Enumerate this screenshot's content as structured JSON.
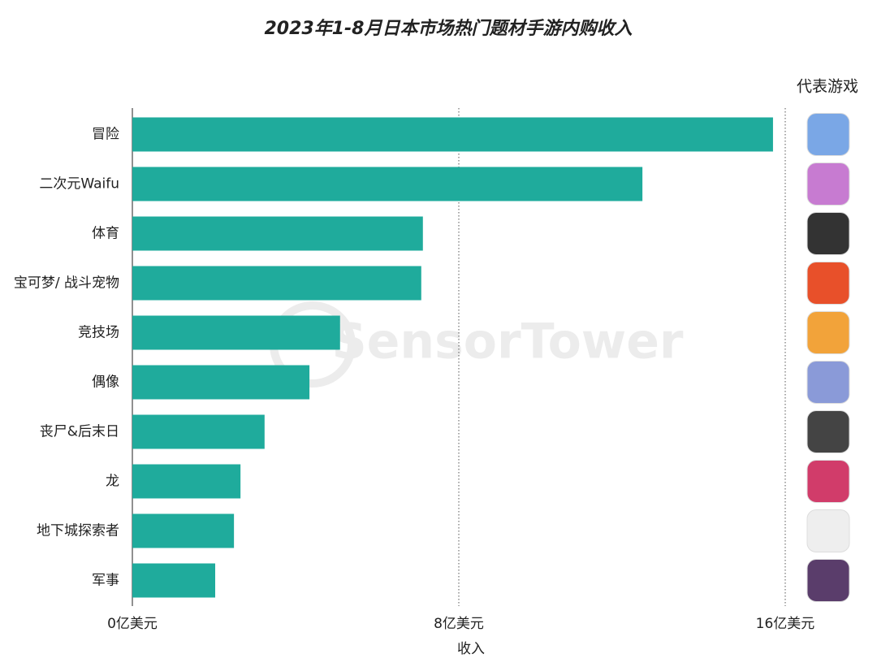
{
  "chart_data": {
    "type": "hbar",
    "title": "2023年1-8月日本市场热门题材手游内购收入",
    "categories": [
      "冒险",
      "二次元Waifu",
      "体育",
      "宝可梦/ 战斗宠物",
      "竞技场",
      "偶像",
      "丧尸&后末日",
      "龙",
      "地下城探索者",
      "军事"
    ],
    "values": [
      15.7,
      12.5,
      7.12,
      7.08,
      5.09,
      4.34,
      3.24,
      2.65,
      2.49,
      2.03
    ],
    "color": "#1fab9c",
    "xlim": [
      0,
      16
    ],
    "xticks": [
      {
        "value": 0,
        "label": "0亿美元"
      },
      {
        "value": 8,
        "label": "8亿美元"
      },
      {
        "value": 16,
        "label": "16亿美元"
      }
    ],
    "x_label": "收入",
    "side_header": "代表游戏",
    "watermark": "SensorTower",
    "grid": true
  }
}
